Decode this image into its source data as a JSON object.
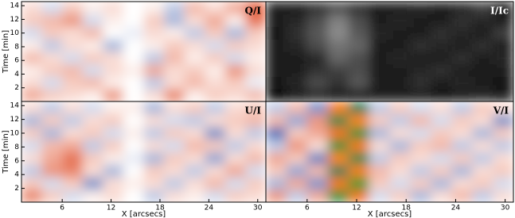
{
  "chart_data": [
    {
      "type": "heatmap",
      "label": "Q/I",
      "ylabel": "Time [min]",
      "xlim": [
        1,
        31
      ],
      "ylim": [
        0,
        14.6
      ],
      "yticks": [
        2,
        4,
        6,
        8,
        10,
        12,
        14
      ],
      "colormap": [
        "#2a4fa8",
        "#ffffff",
        "#e0502a"
      ],
      "clim": [
        -1,
        1
      ],
      "z": [
        [
          0.5,
          0.3,
          0.2,
          0.1,
          0.6,
          0,
          0.2,
          0.7,
          0.1,
          0.3,
          0.2,
          0.4
        ],
        [
          0.2,
          -0.2,
          0.3,
          0.4,
          0.1,
          0,
          -0.3,
          0.2,
          0.4,
          0.2,
          0.3,
          -0.1
        ],
        [
          0.1,
          0.3,
          0.4,
          -0.2,
          0.2,
          0.1,
          0.5,
          0.2,
          0.3,
          0.1,
          0.6,
          0.2
        ],
        [
          0.4,
          0.2,
          -0.2,
          0.3,
          0.2,
          0,
          -0.3,
          0.4,
          0.1,
          0.3,
          -0.2,
          0.1
        ],
        [
          0.1,
          -0.3,
          0.2,
          0.1,
          -0.4,
          0,
          0.1,
          0.3,
          0.2,
          -0.2,
          0.3,
          0.2
        ],
        [
          -0.2,
          0.3,
          0.2,
          0.4,
          0,
          -0.1,
          0.2,
          0.1,
          -0.3,
          0.3,
          -0.4,
          0.3
        ],
        [
          0.3,
          0.4,
          0.6,
          -0.2,
          0.1,
          0,
          0.3,
          -0.4,
          0.2,
          0.5,
          0.1,
          0.8
        ],
        [
          0.2,
          -0.2,
          0.3,
          0.1,
          0.2,
          0,
          0.1,
          -0.3,
          0.4,
          0.2,
          0.5,
          0.9
        ]
      ]
    },
    {
      "type": "heatmap",
      "label": "I/Ic",
      "xlim": [
        1,
        31
      ],
      "ylim": [
        0,
        14.6
      ],
      "colormap": [
        "#000000",
        "#ffffff"
      ],
      "clim": [
        0,
        1
      ],
      "z": [
        [
          0.05,
          0.1,
          0.15,
          0.1,
          0.08,
          0.1,
          0.12,
          0.1,
          0.08,
          0.1,
          0.15,
          0.1
        ],
        [
          0.08,
          0.15,
          0.3,
          0.2,
          0.35,
          0.1,
          0.12,
          0.2,
          0.1,
          0.15,
          0.1,
          0.08
        ],
        [
          0.1,
          0.12,
          0.2,
          0.25,
          0.3,
          0.12,
          0.1,
          0.15,
          0.2,
          0.1,
          0.12,
          0.1
        ],
        [
          0.12,
          0.1,
          0.15,
          0.4,
          0.3,
          0.1,
          0.15,
          0.1,
          0.12,
          0.2,
          0.1,
          0.15
        ],
        [
          0.1,
          0.15,
          0.3,
          0.45,
          0.4,
          0.12,
          0.1,
          0.2,
          0.15,
          0.1,
          0.2,
          0.1
        ],
        [
          0.08,
          0.2,
          0.35,
          0.55,
          0.35,
          0.15,
          0.12,
          0.1,
          0.2,
          0.15,
          0.1,
          0.25
        ],
        [
          0.1,
          0.15,
          0.3,
          0.5,
          0.3,
          0.1,
          0.15,
          0.12,
          0.1,
          0.2,
          0.15,
          0.1
        ],
        [
          0.12,
          0.1,
          0.2,
          0.3,
          0.2,
          0.1,
          0.12,
          0.15,
          0.1,
          0.15,
          0.25,
          0.1
        ]
      ]
    },
    {
      "type": "heatmap",
      "label": "U/I",
      "ylabel": "Time [min]",
      "xlabel": "X [arcsecs]",
      "xlim": [
        1,
        31
      ],
      "ylim": [
        0,
        14.6
      ],
      "xticks": [
        6,
        12,
        18,
        24,
        30
      ],
      "yticks": [
        2,
        4,
        6,
        8,
        10,
        12,
        14
      ],
      "colormap": [
        "#2a4fa8",
        "#ffffff",
        "#e0502a"
      ],
      "clim": [
        -1,
        1
      ],
      "z": [
        [
          0.7,
          0.3,
          -0.2,
          0.1,
          0.2,
          0,
          -0.3,
          0.2,
          0.1,
          -0.2,
          0.3,
          0.2
        ],
        [
          0.3,
          -0.2,
          0.3,
          -0.6,
          0.2,
          0.1,
          0.2,
          -0.3,
          0.2,
          0.4,
          -0.2,
          0.3
        ],
        [
          -0.3,
          0.6,
          0.7,
          0.2,
          -0.4,
          0,
          0.3,
          0.2,
          -0.3,
          0.2,
          0.5,
          -0.2
        ],
        [
          0.2,
          0.5,
          0.8,
          0.3,
          0.1,
          -0.1,
          -0.4,
          0.3,
          0.2,
          -0.5,
          0.2,
          0.4
        ],
        [
          -0.2,
          0.4,
          0.5,
          -0.3,
          0.3,
          0,
          0.2,
          -0.2,
          0.4,
          0.3,
          -0.3,
          0.2
        ],
        [
          0.3,
          -0.4,
          0.2,
          0.3,
          -0.2,
          0.1,
          -0.3,
          0.3,
          0.2,
          -0.6,
          0.2,
          -0.3
        ],
        [
          -0.4,
          0.3,
          -0.3,
          0.2,
          0.3,
          0,
          0.2,
          -0.2,
          -0.3,
          0.2,
          0.3,
          0.4
        ],
        [
          0.2,
          -0.3,
          0.2,
          -0.2,
          0.1,
          0.1,
          -0.4,
          0.2,
          0.3,
          -0.3,
          0.2,
          0.3
        ]
      ]
    },
    {
      "type": "heatmap",
      "label": "V/I",
      "xlabel": "X [arcsecs]",
      "xlim": [
        1,
        31
      ],
      "ylim": [
        0,
        14.6
      ],
      "xticks": [
        6,
        12,
        18,
        24,
        30
      ],
      "colormap": [
        "#2aa02a",
        "#2a4fa8",
        "#ffffff",
        "#e0502a",
        "#ff8c10"
      ],
      "clim": [
        -2,
        2
      ],
      "z": [
        [
          0.6,
          -0.3,
          0.5,
          -1.8,
          1.6,
          -0.2,
          0.3,
          -0.4,
          0.2,
          0.4,
          -0.3,
          0.2
        ],
        [
          -0.4,
          0.5,
          -0.6,
          1.7,
          -1.9,
          0.3,
          -0.2,
          0.3,
          -0.4,
          0.2,
          0.3,
          -0.2
        ],
        [
          0.3,
          -0.5,
          0.4,
          -1.6,
          1.8,
          0.4,
          0.2,
          -0.3,
          0.3,
          -0.4,
          0.2,
          0.3
        ],
        [
          0.5,
          0.3,
          -0.7,
          1.9,
          -1.7,
          -0.3,
          0.3,
          0.2,
          -0.2,
          0.3,
          -0.3,
          0.2
        ],
        [
          -0.3,
          0.6,
          0.2,
          -1.8,
          1.7,
          0.2,
          -0.4,
          0.3,
          0.4,
          -0.3,
          0.2,
          -0.3
        ],
        [
          -0.8,
          0.3,
          0.5,
          1.6,
          -1.8,
          -0.4,
          0.2,
          -0.2,
          0.3,
          0.2,
          -0.4,
          0.3
        ],
        [
          0.4,
          -0.5,
          0.6,
          -1.7,
          1.9,
          0.3,
          -0.3,
          0.4,
          -0.2,
          0.3,
          0.2,
          -0.6
        ],
        [
          -0.3,
          0.4,
          -0.6,
          1.8,
          -1.6,
          -0.3,
          0.3,
          -0.2,
          0.2,
          -0.3,
          0.3,
          0.2
        ]
      ]
    }
  ]
}
